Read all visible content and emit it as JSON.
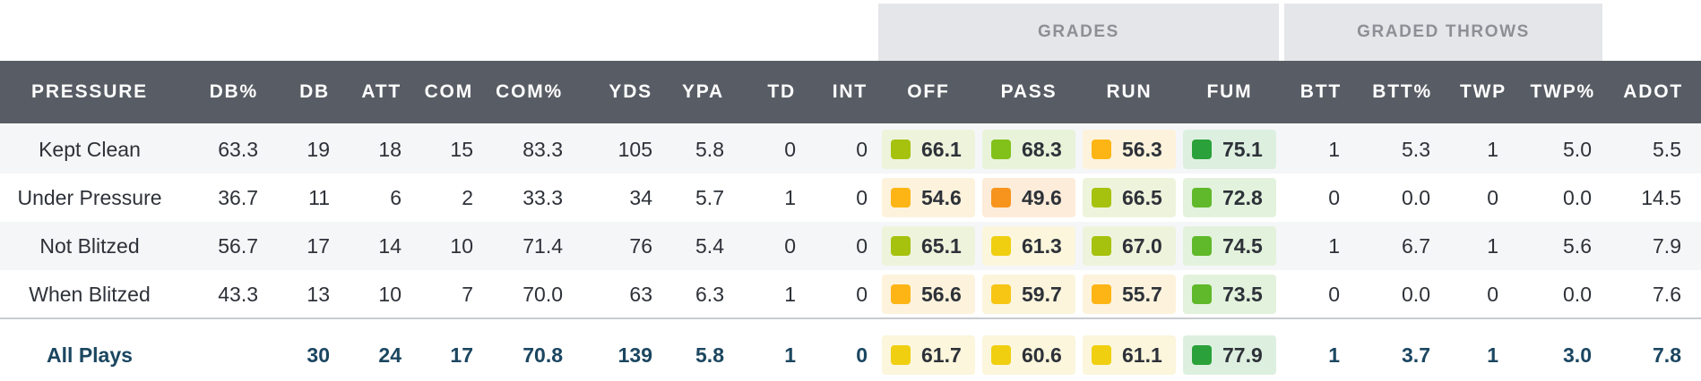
{
  "group_headers": {
    "grades": "GRADES",
    "graded_throws": "GRADED THROWS"
  },
  "columns": [
    "PRESSURE",
    "DB%",
    "DB",
    "ATT",
    "COM",
    "COM%",
    "YDS",
    "YPA",
    "TD",
    "INT",
    "OFF",
    "PASS",
    "RUN",
    "FUM",
    "BTT",
    "BTT%",
    "TWP",
    "TWP%",
    "ADOT"
  ],
  "rows": [
    {
      "pressure": "Kept Clean",
      "db_pct": "63.3",
      "db": "19",
      "att": "18",
      "com": "15",
      "com_pct": "83.3",
      "yds": "105",
      "ypa": "5.8",
      "td": "0",
      "int": "0",
      "off": {
        "value": "66.1",
        "color": "#a6c20e",
        "bg": "#eef4dc"
      },
      "pass": {
        "value": "68.3",
        "color": "#82c11a",
        "bg": "#e8f3da"
      },
      "run": {
        "value": "56.3",
        "color": "#fdb515",
        "bg": "#fdf3dc"
      },
      "fum": {
        "value": "75.1",
        "color": "#2aa13a",
        "bg": "#ddf0e0"
      },
      "btt": "1",
      "btt_pct": "5.3",
      "twp": "1",
      "twp_pct": "5.0",
      "adot": "5.5"
    },
    {
      "pressure": "Under Pressure",
      "db_pct": "36.7",
      "db": "11",
      "att": "6",
      "com": "2",
      "com_pct": "33.3",
      "yds": "34",
      "ypa": "5.7",
      "td": "1",
      "int": "0",
      "off": {
        "value": "54.6",
        "color": "#fdb515",
        "bg": "#fdf3dc"
      },
      "pass": {
        "value": "49.6",
        "color": "#f7941d",
        "bg": "#fdecd9"
      },
      "run": {
        "value": "66.5",
        "color": "#a6c20e",
        "bg": "#eef4dc"
      },
      "fum": {
        "value": "72.8",
        "color": "#5fb92a",
        "bg": "#e3f2dc"
      },
      "btt": "0",
      "btt_pct": "0.0",
      "twp": "0",
      "twp_pct": "0.0",
      "adot": "14.5"
    },
    {
      "pressure": "Not Blitzed",
      "db_pct": "56.7",
      "db": "17",
      "att": "14",
      "com": "10",
      "com_pct": "71.4",
      "yds": "76",
      "ypa": "5.4",
      "td": "0",
      "int": "0",
      "off": {
        "value": "65.1",
        "color": "#a6c20e",
        "bg": "#eef4dc"
      },
      "pass": {
        "value": "61.3",
        "color": "#f0cf10",
        "bg": "#fbf6dc"
      },
      "run": {
        "value": "67.0",
        "color": "#a6c20e",
        "bg": "#eef4dc"
      },
      "fum": {
        "value": "74.5",
        "color": "#5fb92a",
        "bg": "#e3f2dc"
      },
      "btt": "1",
      "btt_pct": "6.7",
      "twp": "1",
      "twp_pct": "5.6",
      "adot": "7.9"
    },
    {
      "pressure": "When Blitzed",
      "db_pct": "43.3",
      "db": "13",
      "att": "10",
      "com": "7",
      "com_pct": "70.0",
      "yds": "63",
      "ypa": "6.3",
      "td": "1",
      "int": "0",
      "off": {
        "value": "56.6",
        "color": "#fdb515",
        "bg": "#fdf3dc"
      },
      "pass": {
        "value": "59.7",
        "color": "#f7c514",
        "bg": "#fcf5dc"
      },
      "run": {
        "value": "55.7",
        "color": "#fdb515",
        "bg": "#fdf3dc"
      },
      "fum": {
        "value": "73.5",
        "color": "#5fb92a",
        "bg": "#e3f2dc"
      },
      "btt": "0",
      "btt_pct": "0.0",
      "twp": "0",
      "twp_pct": "0.0",
      "adot": "7.6"
    }
  ],
  "total": {
    "pressure": "All Plays",
    "db_pct": "",
    "db": "30",
    "att": "24",
    "com": "17",
    "com_pct": "70.8",
    "yds": "139",
    "ypa": "5.8",
    "td": "1",
    "int": "0",
    "off": {
      "value": "61.7",
      "color": "#f0cf10",
      "bg": "#fbf6dc"
    },
    "pass": {
      "value": "60.6",
      "color": "#f0cf10",
      "bg": "#fbf6dc"
    },
    "run": {
      "value": "61.1",
      "color": "#f0cf10",
      "bg": "#fbf6dc"
    },
    "fum": {
      "value": "77.9",
      "color": "#2aa13a",
      "bg": "#ddf0e0"
    },
    "btt": "1",
    "btt_pct": "3.7",
    "twp": "1",
    "twp_pct": "3.0",
    "adot": "7.8"
  }
}
